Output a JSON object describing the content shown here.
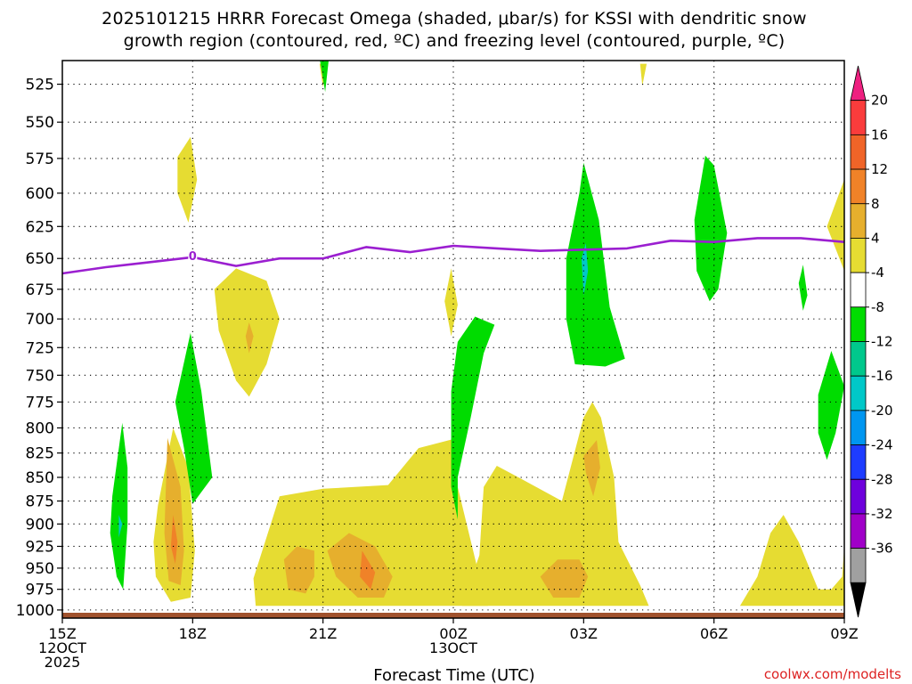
{
  "chart_data": {
    "type": "heatmap",
    "title_lines": [
      "2025101215 HRRR Forecast Omega (shaded, μbar/s) for KSSI with dendritic snow",
      "growth region (contoured, red, ºC) and freezing level (contoured, purple, ºC)"
    ],
    "xlabel": "Forecast Time (UTC)",
    "credit": "coolwx.com/modelts",
    "x_ticks": [
      {
        "hour": 0,
        "lines": [
          "15Z",
          "12OCT",
          "2025"
        ]
      },
      {
        "hour": 3,
        "lines": [
          "18Z"
        ]
      },
      {
        "hour": 6,
        "lines": [
          "21Z"
        ]
      },
      {
        "hour": 9,
        "lines": [
          "00Z",
          "13OCT"
        ]
      },
      {
        "hour": 12,
        "lines": [
          "03Z"
        ]
      },
      {
        "hour": 15,
        "lines": [
          "06Z"
        ]
      },
      {
        "hour": 18,
        "lines": [
          "09Z"
        ]
      }
    ],
    "xlim_hours": [
      0,
      18
    ],
    "y_ticks_hpa": [
      "525",
      "550",
      "575",
      "600",
      "625",
      "650",
      "675",
      "700",
      "725",
      "750",
      "775",
      "800",
      "825",
      "850",
      "875",
      "900",
      "925",
      "950",
      "975",
      "1000"
    ],
    "ylim_hpa": [
      510,
      1010
    ],
    "colorbar": {
      "tick_labels": [
        "20",
        "16",
        "12",
        "8",
        "4",
        "-4",
        "-8",
        "-12",
        "-16",
        "-20",
        "-24",
        "-28",
        "-32",
        "-36"
      ],
      "bins": [
        {
          "color": "#ee2080"
        },
        {
          "color": "#fa3c3c"
        },
        {
          "color": "#f06428"
        },
        {
          "color": "#f08228"
        },
        {
          "color": "#e6af2d"
        },
        {
          "color": "#e6dc32"
        },
        {
          "color": "#ffffff"
        },
        {
          "color": "#00dc00"
        },
        {
          "color": "#00c88c"
        },
        {
          "color": "#00c8c8"
        },
        {
          "color": "#0096f0"
        },
        {
          "color": "#1e3cff"
        },
        {
          "color": "#6e00dc"
        },
        {
          "color": "#a000c8"
        },
        {
          "color": "#a0a0a0"
        },
        {
          "color": "#000000"
        }
      ]
    },
    "freezing_level": {
      "color": "#9b1fd0",
      "label": "0",
      "label_point": {
        "hour": 3.0,
        "hpa": 648
      },
      "points": [
        [
          0,
          662
        ],
        [
          1,
          657
        ],
        [
          2,
          653
        ],
        [
          3,
          649
        ],
        [
          4,
          656
        ],
        [
          5,
          650
        ],
        [
          6,
          650
        ],
        [
          7,
          641
        ],
        [
          8,
          645
        ],
        [
          9,
          640
        ],
        [
          10,
          642
        ],
        [
          11,
          644
        ],
        [
          12,
          643
        ],
        [
          13,
          642
        ],
        [
          14,
          636
        ],
        [
          15,
          637
        ],
        [
          16,
          634
        ],
        [
          17,
          634
        ],
        [
          18,
          637
        ]
      ]
    },
    "surface_color": "#a0522d",
    "omega_regions": [
      {
        "color": "#e6dc32",
        "points": [
          [
            2.65,
            574
          ],
          [
            2.95,
            560
          ],
          [
            3.1,
            590
          ],
          [
            2.9,
            622
          ],
          [
            2.65,
            600
          ]
        ]
      },
      {
        "color": "#e6dc32",
        "points": [
          [
            5.92,
            512
          ],
          [
            6.08,
            512
          ],
          [
            6.0,
            527
          ]
        ]
      },
      {
        "color": "#e6dc32",
        "points": [
          [
            13.3,
            512
          ],
          [
            13.45,
            512
          ],
          [
            13.35,
            526
          ]
        ]
      },
      {
        "color": "#e6dc32",
        "points": [
          [
            18.0,
            590
          ],
          [
            17.6,
            625
          ],
          [
            18.0,
            660
          ]
        ]
      },
      {
        "color": "#e6dc32",
        "points": [
          [
            3.5,
            675
          ],
          [
            4.0,
            658
          ],
          [
            4.7,
            668
          ],
          [
            5.0,
            700
          ],
          [
            4.7,
            740
          ],
          [
            4.3,
            770
          ],
          [
            4.0,
            755
          ],
          [
            3.6,
            710
          ]
        ]
      },
      {
        "color": "#e6dc32",
        "points": [
          [
            8.8,
            685
          ],
          [
            8.95,
            658
          ],
          [
            9.1,
            688
          ],
          [
            8.95,
            715
          ]
        ]
      },
      {
        "color": "#e6dc32",
        "points": [
          [
            2.2,
            880
          ],
          [
            2.55,
            800
          ],
          [
            2.9,
            840
          ],
          [
            3.05,
            930
          ],
          [
            2.95,
            985
          ],
          [
            2.5,
            990
          ],
          [
            2.15,
            960
          ],
          [
            2.1,
            920
          ]
        ]
      },
      {
        "color": "#e6dc32",
        "points": [
          [
            4.4,
            962
          ],
          [
            5.0,
            870
          ],
          [
            6.0,
            862
          ],
          [
            7.5,
            858
          ],
          [
            8.2,
            820
          ],
          [
            9.1,
            810
          ],
          [
            9.1,
            860
          ],
          [
            9.6,
            960
          ],
          [
            9.8,
            995
          ],
          [
            4.45,
            995
          ]
        ]
      },
      {
        "color": "#e6dc32",
        "points": [
          [
            9.2,
            995
          ],
          [
            9.6,
            935
          ],
          [
            9.7,
            860
          ],
          [
            10.0,
            838
          ],
          [
            10.5,
            850
          ],
          [
            11.5,
            875
          ],
          [
            12.0,
            790
          ],
          [
            12.2,
            775
          ],
          [
            12.4,
            790
          ],
          [
            12.7,
            850
          ],
          [
            12.8,
            920
          ],
          [
            13.3,
            970
          ],
          [
            13.5,
            995
          ]
        ]
      },
      {
        "color": "#e6dc32",
        "points": [
          [
            15.6,
            995
          ],
          [
            16.0,
            960
          ],
          [
            16.3,
            910
          ],
          [
            16.6,
            890
          ],
          [
            16.95,
            920
          ],
          [
            17.4,
            975
          ],
          [
            17.7,
            975
          ],
          [
            17.95,
            960
          ],
          [
            18.0,
            925
          ],
          [
            18.0,
            995
          ]
        ]
      },
      {
        "color": "#e6af2d",
        "points": [
          [
            2.42,
            810
          ],
          [
            2.72,
            860
          ],
          [
            2.8,
            930
          ],
          [
            2.72,
            970
          ],
          [
            2.45,
            965
          ],
          [
            2.35,
            910
          ]
        ]
      },
      {
        "color": "#f08228",
        "points": [
          [
            2.55,
            890
          ],
          [
            2.65,
            920
          ],
          [
            2.6,
            945
          ],
          [
            2.5,
            925
          ]
        ]
      },
      {
        "color": "#e6af2d",
        "points": [
          [
            4.3,
            703
          ],
          [
            4.4,
            715
          ],
          [
            4.3,
            730
          ],
          [
            4.22,
            715
          ]
        ]
      },
      {
        "color": "#e6af2d",
        "points": [
          [
            5.1,
            940
          ],
          [
            5.4,
            925
          ],
          [
            5.8,
            930
          ],
          [
            5.8,
            960
          ],
          [
            5.6,
            980
          ],
          [
            5.2,
            975
          ]
        ]
      },
      {
        "color": "#e6af2d",
        "points": [
          [
            6.1,
            930
          ],
          [
            6.6,
            910
          ],
          [
            7.2,
            925
          ],
          [
            7.6,
            960
          ],
          [
            7.4,
            985
          ],
          [
            6.8,
            985
          ],
          [
            6.3,
            960
          ]
        ]
      },
      {
        "color": "#f08228",
        "points": [
          [
            6.9,
            930
          ],
          [
            7.2,
            955
          ],
          [
            7.1,
            975
          ],
          [
            6.85,
            960
          ]
        ]
      },
      {
        "color": "#e6af2d",
        "points": [
          [
            11.0,
            960
          ],
          [
            11.4,
            940
          ],
          [
            11.9,
            940
          ],
          [
            12.1,
            960
          ],
          [
            11.9,
            985
          ],
          [
            11.3,
            985
          ]
        ]
      },
      {
        "color": "#e6af2d",
        "points": [
          [
            12.0,
            828
          ],
          [
            12.3,
            812
          ],
          [
            12.38,
            840
          ],
          [
            12.22,
            870
          ],
          [
            12.05,
            845
          ]
        ]
      },
      {
        "color": "#00dc00",
        "points": [
          [
            5.9,
            505
          ],
          [
            6.15,
            505
          ],
          [
            6.05,
            530
          ]
        ]
      },
      {
        "color": "#00dc00",
        "points": [
          [
            1.15,
            870
          ],
          [
            1.38,
            795
          ],
          [
            1.5,
            840
          ],
          [
            1.5,
            900
          ],
          [
            1.4,
            975
          ],
          [
            1.25,
            960
          ],
          [
            1.1,
            910
          ]
        ]
      },
      {
        "color": "#00c8c8",
        "points": [
          [
            1.3,
            890
          ],
          [
            1.38,
            900
          ],
          [
            1.3,
            915
          ]
        ]
      },
      {
        "color": "#00dc00",
        "points": [
          [
            2.6,
            775
          ],
          [
            2.95,
            712
          ],
          [
            3.2,
            765
          ],
          [
            3.45,
            850
          ],
          [
            3.0,
            878
          ],
          [
            2.8,
            820
          ]
        ]
      },
      {
        "color": "#00dc00",
        "points": [
          [
            8.95,
            765
          ],
          [
            9.1,
            720
          ],
          [
            9.5,
            698
          ],
          [
            9.95,
            705
          ],
          [
            9.7,
            730
          ],
          [
            9.4,
            790
          ],
          [
            9.1,
            850
          ],
          [
            9.1,
            895
          ],
          [
            8.95,
            860
          ]
        ]
      },
      {
        "color": "#00dc00",
        "points": [
          [
            11.6,
            650
          ],
          [
            11.9,
            600
          ],
          [
            12.0,
            578
          ],
          [
            12.35,
            620
          ],
          [
            12.6,
            690
          ],
          [
            12.95,
            735
          ],
          [
            12.5,
            742
          ],
          [
            11.8,
            740
          ],
          [
            11.6,
            700
          ]
        ]
      },
      {
        "color": "#00c8c8",
        "points": [
          [
            11.95,
            650
          ],
          [
            12.05,
            638
          ],
          [
            12.1,
            660
          ],
          [
            12.0,
            680
          ]
        ]
      },
      {
        "color": "#00dc00",
        "points": [
          [
            14.55,
            620
          ],
          [
            14.8,
            573
          ],
          [
            15.0,
            580
          ],
          [
            15.3,
            630
          ],
          [
            15.1,
            675
          ],
          [
            14.9,
            685
          ],
          [
            14.6,
            660
          ]
        ]
      },
      {
        "color": "#00dc00",
        "points": [
          [
            16.95,
            670
          ],
          [
            17.05,
            655
          ],
          [
            17.15,
            680
          ],
          [
            17.05,
            693
          ]
        ]
      },
      {
        "color": "#00dc00",
        "points": [
          [
            17.4,
            768
          ],
          [
            17.7,
            728
          ],
          [
            18.0,
            760
          ],
          [
            17.8,
            805
          ],
          [
            17.6,
            832
          ],
          [
            17.4,
            805
          ]
        ]
      }
    ]
  }
}
